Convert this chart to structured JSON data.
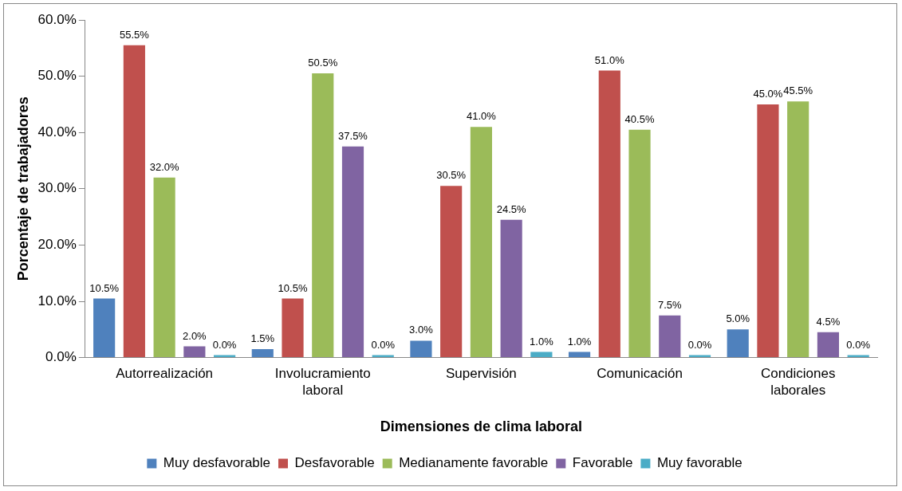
{
  "chart_data": {
    "type": "bar",
    "xlabel": "Dimensiones de clima laboral",
    "ylabel": "Porcentaje de trabajadores",
    "categories": [
      "Autorrealización",
      "Involucramiento laboral",
      "Supervisión",
      "Comunicación",
      "Condiciones laborales"
    ],
    "series": [
      {
        "name": "Muy desfavorable",
        "color": "#4f81bd",
        "values": [
          10.5,
          1.5,
          3.0,
          1.0,
          5.0
        ],
        "value_labels": [
          "10.5%",
          "1.5%",
          "3.0%",
          "1.0%",
          "5.0%"
        ]
      },
      {
        "name": "Desfavorable",
        "color": "#c0504d",
        "values": [
          55.5,
          10.5,
          30.5,
          51.0,
          45.0
        ],
        "value_labels": [
          "55.5%",
          "10.5%",
          "30.5%",
          "51.0%",
          "45.0%"
        ]
      },
      {
        "name": "Medianamente favorable",
        "color": "#9bbb59",
        "values": [
          32.0,
          50.5,
          41.0,
          40.5,
          45.5
        ],
        "value_labels": [
          "32.0%",
          "50.5%",
          "41.0%",
          "40.5%",
          "45.5%"
        ]
      },
      {
        "name": "Favorable",
        "color": "#8064a2",
        "values": [
          2.0,
          37.5,
          24.5,
          7.5,
          4.5
        ],
        "value_labels": [
          "2.0%",
          "37.5%",
          "24.5%",
          "7.5%",
          "4.5%"
        ]
      },
      {
        "name": "Muy favorable",
        "color": "#4bacc6",
        "values": [
          0.0,
          0.0,
          1.0,
          0.0,
          0.0
        ],
        "value_labels": [
          "0.0%",
          "0.0%",
          "1.0%",
          "0.0%",
          "0.0%"
        ]
      }
    ],
    "ylim": [
      0,
      60
    ],
    "yticks": [
      {
        "value": 0,
        "label": "0.0%"
      },
      {
        "value": 10,
        "label": "10.0%"
      },
      {
        "value": 20,
        "label": "20.0%"
      },
      {
        "value": 30,
        "label": "30.0%"
      },
      {
        "value": 40,
        "label": "40.0%"
      },
      {
        "value": 50,
        "label": "50.0%"
      },
      {
        "value": 60,
        "label": "60.0%"
      }
    ],
    "grid": false,
    "legend": "bottom"
  }
}
